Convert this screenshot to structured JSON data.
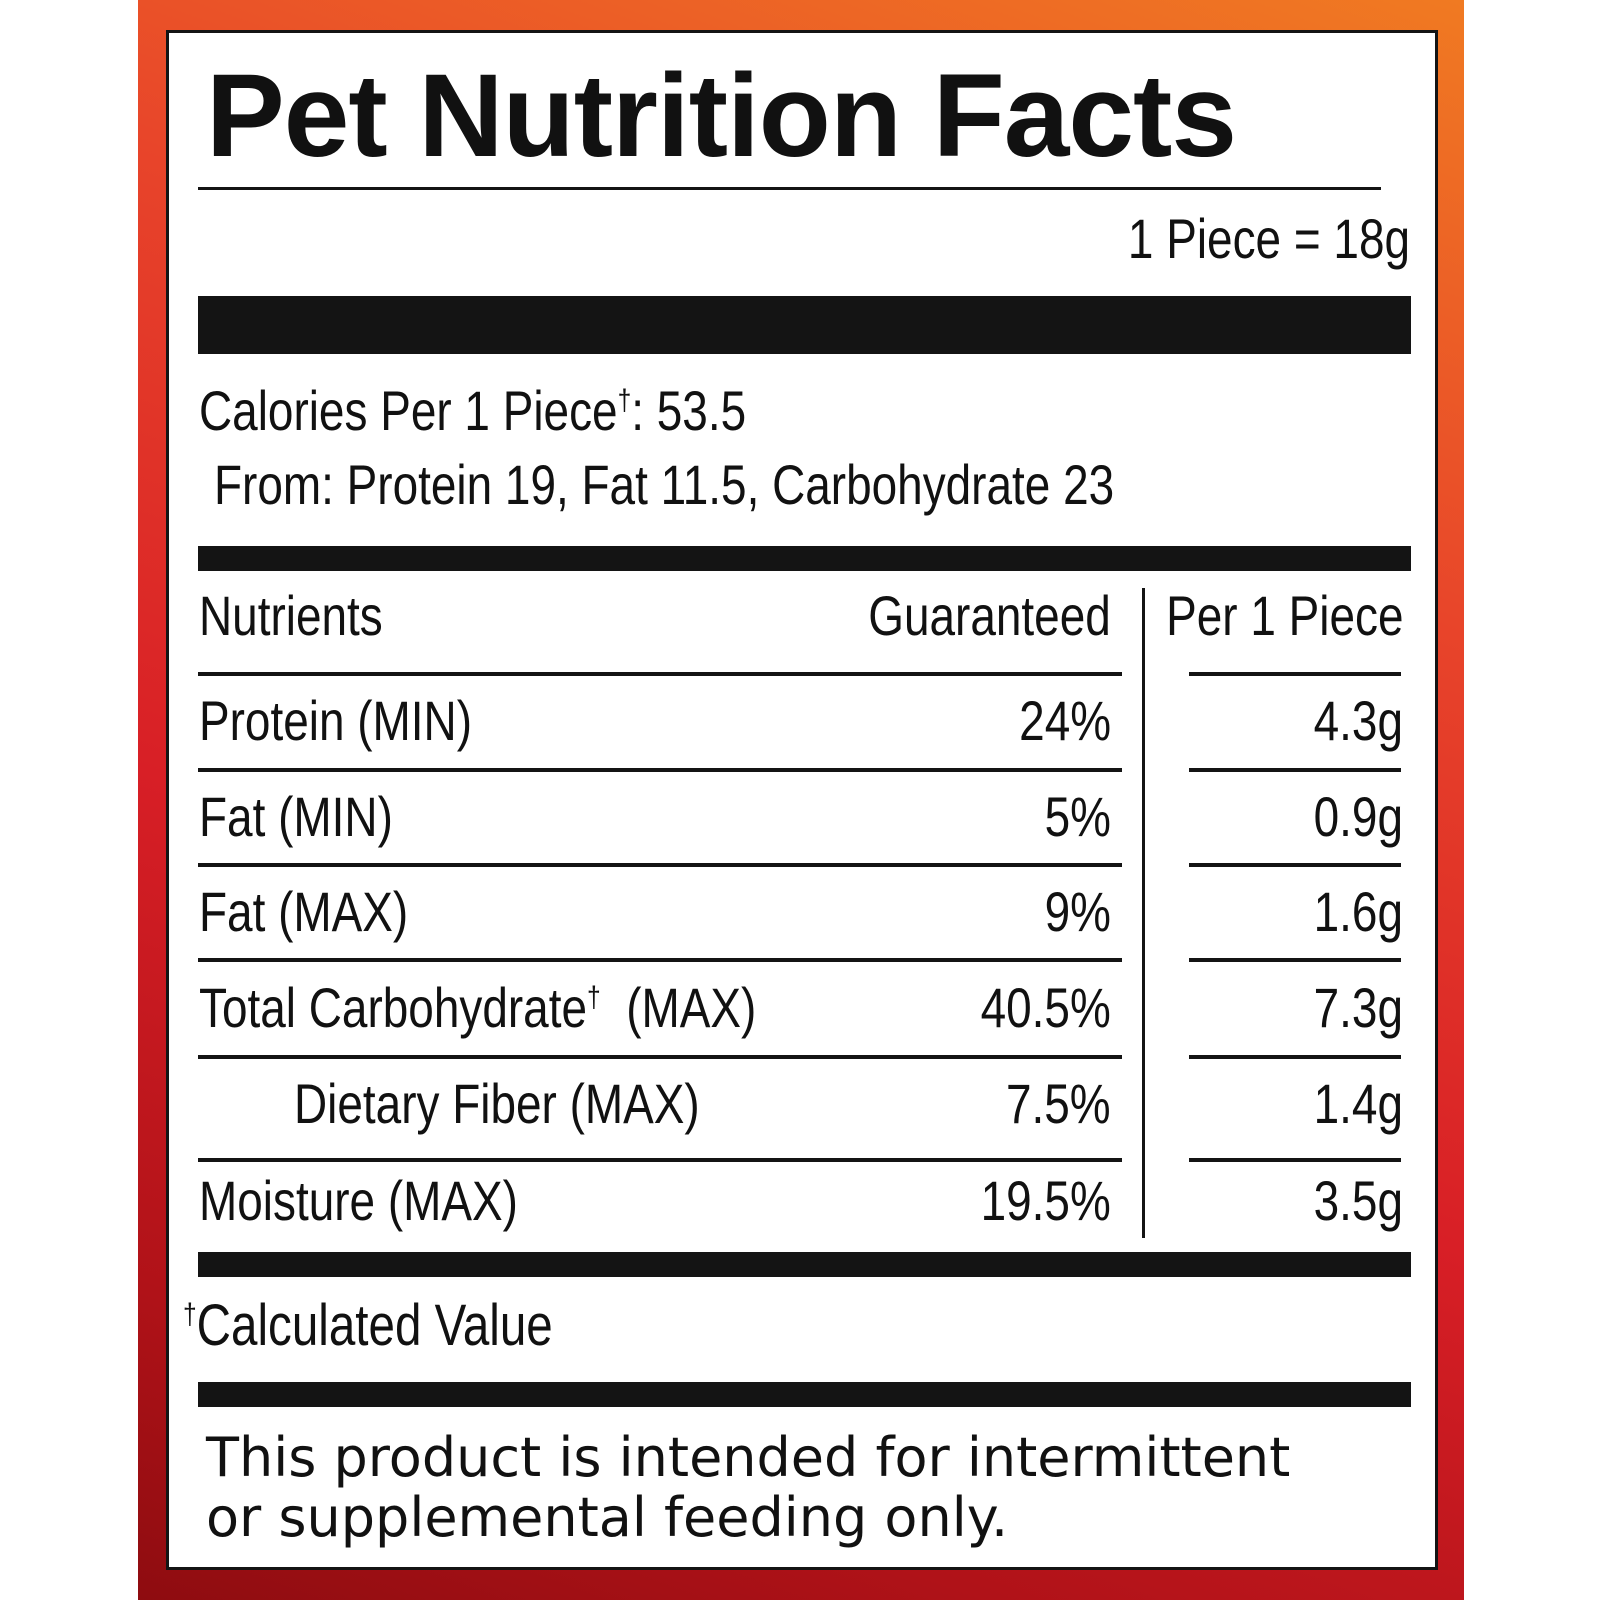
{
  "label": {
    "title": "Pet Nutrition Facts",
    "serving_size": "1 Piece = 18g",
    "calories_prefix": "Calories Per 1 Piece",
    "calories_mark": "†",
    "calories_value": ": 53.5",
    "calories_from": "From: Protein 19, Fat 11.5, Carbohydrate 23",
    "colors": {
      "frame_orange": "#f07a22",
      "frame_red": "#d81f26",
      "frame_dark_red": "#8e0c10",
      "ink": "#141414"
    }
  },
  "table": {
    "headers": {
      "nutrients": "Nutrients",
      "guaranteed": "Guaranteed",
      "per_piece": "Per 1 Piece"
    },
    "rows": [
      {
        "name": "Protein (MIN)",
        "mark": "",
        "suffix": "",
        "guaranteed": "24%",
        "per_piece": "4.3g"
      },
      {
        "name": "Fat (MIN)",
        "mark": "",
        "suffix": "",
        "guaranteed": "5%",
        "per_piece": "0.9g"
      },
      {
        "name": "Fat (MAX)",
        "mark": "",
        "suffix": "",
        "guaranteed": "9%",
        "per_piece": "1.6g"
      },
      {
        "name": "Total Carbohydrate",
        "mark": "†",
        "suffix": "  (MAX)",
        "guaranteed": "40.5%",
        "per_piece": "7.3g"
      },
      {
        "name": "Dietary Fiber (MAX)",
        "mark": "",
        "suffix": "",
        "guaranteed": "7.5%",
        "per_piece": "1.4g"
      },
      {
        "name": "Moisture (MAX)",
        "mark": "",
        "suffix": "",
        "guaranteed": "19.5%",
        "per_piece": "3.5g"
      }
    ]
  },
  "footnote": {
    "mark": "†",
    "text": "Calculated Value"
  },
  "disclaimer": {
    "line1": "This product is intended for intermittent",
    "line2": "or supplemental feeding only."
  }
}
